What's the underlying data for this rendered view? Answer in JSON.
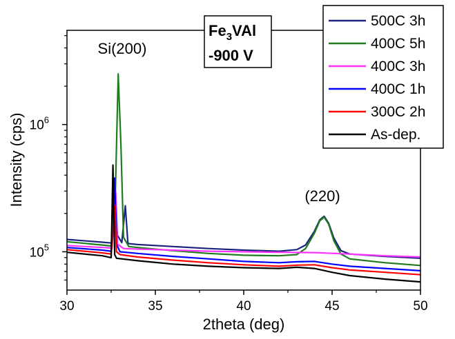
{
  "chart_data": {
    "type": "line",
    "xlabel": "2theta (deg)",
    "ylabel": "Intensity (cps)",
    "xlim": [
      30,
      50
    ],
    "ylim": [
      50000,
      5500000
    ],
    "yscale": "log",
    "x_ticks": [
      "30",
      "35",
      "40",
      "45",
      "50"
    ],
    "y_ticks": [
      {
        "value": 100000,
        "base": "10",
        "exp": "5"
      },
      {
        "value": 1000000,
        "base": "10",
        "exp": "6"
      }
    ],
    "grid": false,
    "legend_position": "top-right",
    "annotations": [
      {
        "text": "Si(200)",
        "x": 33.2,
        "y": 3000000
      },
      {
        "text": "(220)",
        "x": 44.3,
        "y": 245000
      }
    ],
    "label_box": {
      "line1_main": "Fe",
      "line1_sub": "3",
      "line1_rest": "VAl",
      "line2": "-900 V"
    },
    "series": [
      {
        "name": "500C 3h",
        "color": "#1a237e",
        "points": [
          [
            30,
            125000
          ],
          [
            32,
            119000
          ],
          [
            32.55,
            117000
          ],
          [
            32.75,
            300000
          ],
          [
            32.85,
            135000
          ],
          [
            33.1,
            118000
          ],
          [
            33.3,
            230000
          ],
          [
            33.45,
            116000
          ],
          [
            34,
            114000
          ],
          [
            36,
            110000
          ],
          [
            38,
            106000
          ],
          [
            40,
            103000
          ],
          [
            42,
            101000
          ],
          [
            43,
            104000
          ],
          [
            43.5,
            113000
          ],
          [
            44,
            145000
          ],
          [
            44.3,
            178000
          ],
          [
            44.55,
            190000
          ],
          [
            44.8,
            168000
          ],
          [
            45.1,
            128000
          ],
          [
            45.5,
            102000
          ],
          [
            46,
            96000
          ],
          [
            48,
            92000
          ],
          [
            50,
            89000
          ]
        ]
      },
      {
        "name": "400C 5h",
        "color": "#1e7b1e",
        "points": [
          [
            30,
            120000
          ],
          [
            32,
            113000
          ],
          [
            32.5,
            111000
          ],
          [
            32.7,
            170000
          ],
          [
            32.9,
            2500000
          ],
          [
            33.05,
            700000
          ],
          [
            33.2,
            130000
          ],
          [
            33.5,
            110000
          ],
          [
            34,
            108000
          ],
          [
            36,
            102000
          ],
          [
            38,
            97000
          ],
          [
            40,
            94000
          ],
          [
            42,
            93000
          ],
          [
            43,
            95000
          ],
          [
            43.5,
            106000
          ],
          [
            44,
            140000
          ],
          [
            44.3,
            175000
          ],
          [
            44.55,
            187000
          ],
          [
            44.8,
            165000
          ],
          [
            45.1,
            122000
          ],
          [
            45.5,
            96000
          ],
          [
            46,
            88000
          ],
          [
            48,
            82000
          ],
          [
            50,
            78000
          ]
        ]
      },
      {
        "name": "400C 3h",
        "color": "#ff33ff",
        "points": [
          [
            30,
            112000
          ],
          [
            32,
            108000
          ],
          [
            32.55,
            107000
          ],
          [
            32.75,
            300000
          ],
          [
            32.85,
            115000
          ],
          [
            33.2,
            106000
          ],
          [
            34,
            105000
          ],
          [
            36,
            103000
          ],
          [
            38,
            101000
          ],
          [
            40,
            100000
          ],
          [
            42,
            99000
          ],
          [
            44,
            98500
          ],
          [
            46,
            96000
          ],
          [
            48,
            93000
          ],
          [
            50,
            91000
          ]
        ]
      },
      {
        "name": "400C 1h",
        "color": "#0000ff",
        "points": [
          [
            30,
            108000
          ],
          [
            32,
            103000
          ],
          [
            32.5,
            101000
          ],
          [
            32.7,
            380000
          ],
          [
            32.8,
            115000
          ],
          [
            33.0,
            100000
          ],
          [
            34,
            97000
          ],
          [
            36,
            92000
          ],
          [
            38,
            88000
          ],
          [
            40,
            84000
          ],
          [
            42,
            82000
          ],
          [
            43,
            83500
          ],
          [
            44,
            84000
          ],
          [
            45,
            80000
          ],
          [
            46,
            77000
          ],
          [
            48,
            74000
          ],
          [
            50,
            71000
          ]
        ]
      },
      {
        "name": "300C 2h",
        "color": "#ff0000",
        "points": [
          [
            30,
            104000
          ],
          [
            32,
            98000
          ],
          [
            32.5,
            96000
          ],
          [
            32.7,
            230000
          ],
          [
            32.8,
            100000
          ],
          [
            33.0,
            95000
          ],
          [
            34,
            91000
          ],
          [
            36,
            86000
          ],
          [
            38,
            82000
          ],
          [
            40,
            79000
          ],
          [
            42,
            77000
          ],
          [
            43,
            78500
          ],
          [
            44,
            79000
          ],
          [
            45,
            75000
          ],
          [
            46,
            72000
          ],
          [
            48,
            69000
          ],
          [
            50,
            66000
          ]
        ]
      },
      {
        "name": "As-dep.",
        "color": "#000000",
        "points": [
          [
            30,
            99000
          ],
          [
            32,
            93000
          ],
          [
            32.5,
            90000
          ],
          [
            32.6,
            480000
          ],
          [
            32.7,
            95000
          ],
          [
            32.8,
            89000
          ],
          [
            34,
            85000
          ],
          [
            36,
            80000
          ],
          [
            38,
            77000
          ],
          [
            40,
            75000
          ],
          [
            42,
            74000
          ],
          [
            43,
            75500
          ],
          [
            44,
            74000
          ],
          [
            45,
            69000
          ],
          [
            46,
            65000
          ],
          [
            48,
            61000
          ],
          [
            50,
            58000
          ]
        ]
      }
    ]
  }
}
